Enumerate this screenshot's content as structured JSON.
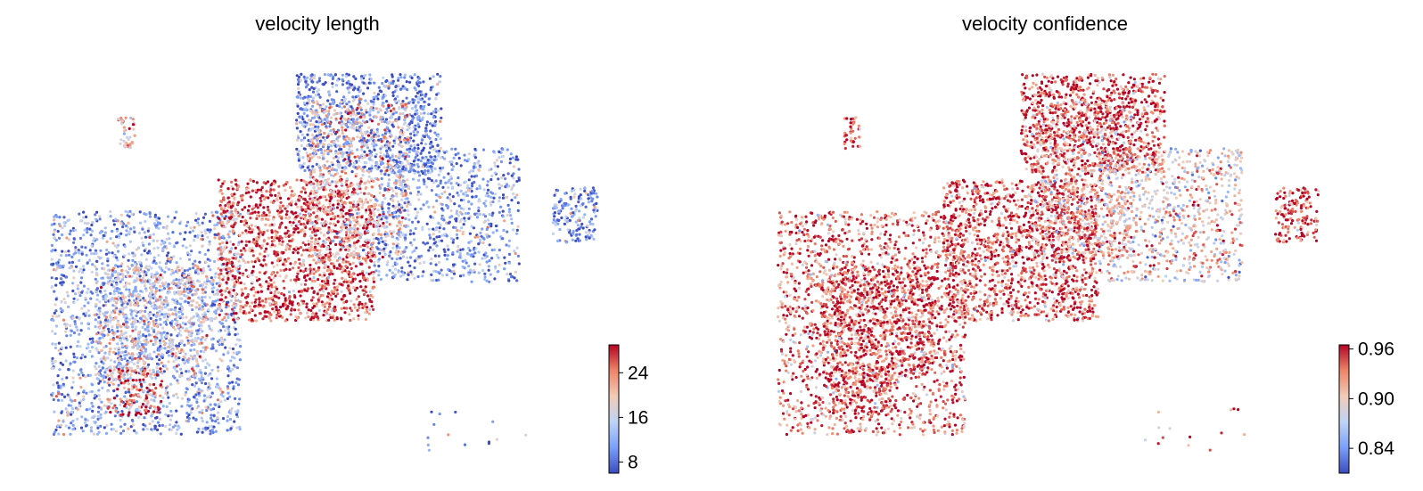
{
  "chart_data": [
    {
      "type": "scatter",
      "title": "velocity length",
      "xlabel": "",
      "ylabel": "",
      "colormap": "coolwarm",
      "colormap_stops": [
        "#3b4cc0",
        "#7b9ff9",
        "#c0d4f5",
        "#f2cbb7",
        "#ee8468",
        "#b40426"
      ],
      "colorbar": {
        "range": [
          6,
          29
        ],
        "ticks": [
          8,
          16,
          24
        ],
        "tick_labels": [
          "8",
          "16",
          "24"
        ]
      },
      "axes_visible": false,
      "grid": false,
      "regions": [
        {
          "name": "left-blob",
          "x": [
            0.02,
            0.36
          ],
          "y": [
            0.38,
            0.95
          ],
          "n": 1800,
          "value_mean": 12
        },
        {
          "name": "left-center-mixed",
          "x": [
            0.1,
            0.3
          ],
          "y": [
            0.52,
            0.8
          ],
          "n": 700,
          "value_mean": 17
        },
        {
          "name": "center-red-band",
          "x": [
            0.32,
            0.6
          ],
          "y": [
            0.3,
            0.66
          ],
          "n": 1500,
          "value_mean": 26
        },
        {
          "name": "upper-right-blue",
          "x": [
            0.46,
            0.72
          ],
          "y": [
            0.03,
            0.28
          ],
          "n": 900,
          "value_mean": 10
        },
        {
          "name": "upper-center-mixed",
          "x": [
            0.48,
            0.66
          ],
          "y": [
            0.1,
            0.5
          ],
          "n": 700,
          "value_mean": 20
        },
        {
          "name": "right-cluster",
          "x": [
            0.6,
            0.86
          ],
          "y": [
            0.22,
            0.56
          ],
          "n": 800,
          "value_mean": 11
        },
        {
          "name": "small-left-island",
          "x": [
            0.14,
            0.17
          ],
          "y": [
            0.14,
            0.22
          ],
          "n": 40,
          "value_mean": 20
        },
        {
          "name": "far-right-island",
          "x": [
            0.92,
            1.0
          ],
          "y": [
            0.32,
            0.46
          ],
          "n": 160,
          "value_mean": 10
        },
        {
          "name": "bottom-left-red",
          "x": [
            0.12,
            0.22
          ],
          "y": [
            0.78,
            0.9
          ],
          "n": 140,
          "value_mean": 26
        },
        {
          "name": "scattered-bottom-right",
          "x": [
            0.68,
            0.9
          ],
          "y": [
            0.88,
            0.99
          ],
          "n": 14,
          "value_mean": 10
        }
      ]
    },
    {
      "type": "scatter",
      "title": "velocity confidence",
      "xlabel": "",
      "ylabel": "",
      "colormap": "coolwarm",
      "colormap_stops": [
        "#3b4cc0",
        "#7b9ff9",
        "#c0d4f5",
        "#f2cbb7",
        "#ee8468",
        "#b40426"
      ],
      "colorbar": {
        "range": [
          0.81,
          0.965
        ],
        "ticks": [
          0.84,
          0.9,
          0.96
        ],
        "tick_labels": [
          "0.84",
          "0.90",
          "0.96"
        ]
      },
      "axes_visible": false,
      "grid": false,
      "regions": [
        {
          "name": "left-blob",
          "x": [
            0.02,
            0.36
          ],
          "y": [
            0.38,
            0.95
          ],
          "n": 1800,
          "value_mean": 0.935
        },
        {
          "name": "left-center-mixed",
          "x": [
            0.1,
            0.3
          ],
          "y": [
            0.52,
            0.8
          ],
          "n": 700,
          "value_mean": 0.95
        },
        {
          "name": "center-red-band",
          "x": [
            0.32,
            0.6
          ],
          "y": [
            0.3,
            0.66
          ],
          "n": 1500,
          "value_mean": 0.945
        },
        {
          "name": "upper-right-blue",
          "x": [
            0.46,
            0.72
          ],
          "y": [
            0.03,
            0.28
          ],
          "n": 900,
          "value_mean": 0.95
        },
        {
          "name": "upper-center-mixed",
          "x": [
            0.48,
            0.66
          ],
          "y": [
            0.1,
            0.5
          ],
          "n": 700,
          "value_mean": 0.92
        },
        {
          "name": "right-cluster",
          "x": [
            0.6,
            0.86
          ],
          "y": [
            0.22,
            0.56
          ],
          "n": 800,
          "value_mean": 0.9
        },
        {
          "name": "small-left-island",
          "x": [
            0.14,
            0.17
          ],
          "y": [
            0.14,
            0.22
          ],
          "n": 40,
          "value_mean": 0.955
        },
        {
          "name": "far-right-island",
          "x": [
            0.92,
            1.0
          ],
          "y": [
            0.32,
            0.46
          ],
          "n": 160,
          "value_mean": 0.95
        },
        {
          "name": "bottom-left-red",
          "x": [
            0.12,
            0.22
          ],
          "y": [
            0.78,
            0.9
          ],
          "n": 140,
          "value_mean": 0.955
        },
        {
          "name": "scattered-bottom-right",
          "x": [
            0.68,
            0.9
          ],
          "y": [
            0.88,
            0.99
          ],
          "n": 14,
          "value_mean": 0.93
        }
      ]
    }
  ]
}
